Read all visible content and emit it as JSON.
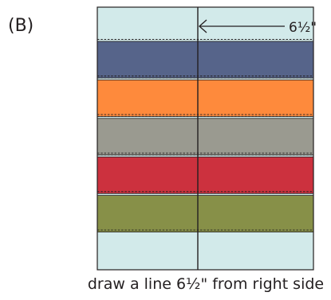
{
  "panel_label": "(B)",
  "measurement_label": "6½\"",
  "caption": "draw a line 6½\" from right side",
  "colors": {
    "background_fabric": "#d2eaea",
    "outline": "#231f20",
    "stitch_line": "#231f20"
  },
  "strips": [
    {
      "name": "blue",
      "color": "#56648a"
    },
    {
      "name": "orange",
      "color": "#fe8a3c"
    },
    {
      "name": "gray",
      "color": "#9a9a90"
    },
    {
      "name": "red",
      "color": "#cc313e"
    },
    {
      "name": "olive",
      "color": "#879048"
    }
  ]
}
